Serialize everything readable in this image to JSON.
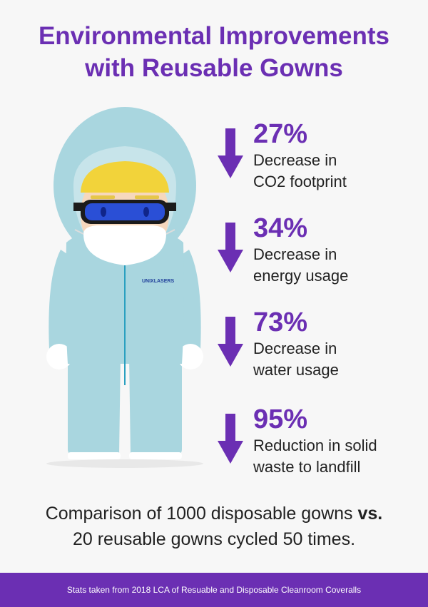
{
  "title": {
    "line1": "Environmental Improvements",
    "line2": "with Reusable Gowns"
  },
  "figure": {
    "badge": "UNIXLASERS",
    "suit_color": "#a9d6df",
    "visor_color": "#2a4fd6",
    "hair_color": "#f2d33a"
  },
  "stats": [
    {
      "value": "27%",
      "line1": "Decrease in",
      "line2": "CO2 footprint"
    },
    {
      "value": "34%",
      "line1": "Decrease in",
      "line2": "energy usage"
    },
    {
      "value": "73%",
      "line1": "Decrease in",
      "line2": "water usage"
    },
    {
      "value": "95%",
      "line1": "Reduction in solid",
      "line2": "waste to landfill"
    }
  ],
  "comparison": {
    "part1": "Comparison of 1000 disposable gowns ",
    "vs": "vs.",
    "line2": "20 reusable gowns cycled 50 times."
  },
  "footer": {
    "text": "Stats taken from 2018 LCA of Resuable and Disposable Cleanroom Coveralls"
  },
  "colors": {
    "accent": "#6b2fb3",
    "text": "#222222",
    "background": "#f7f7f7"
  }
}
